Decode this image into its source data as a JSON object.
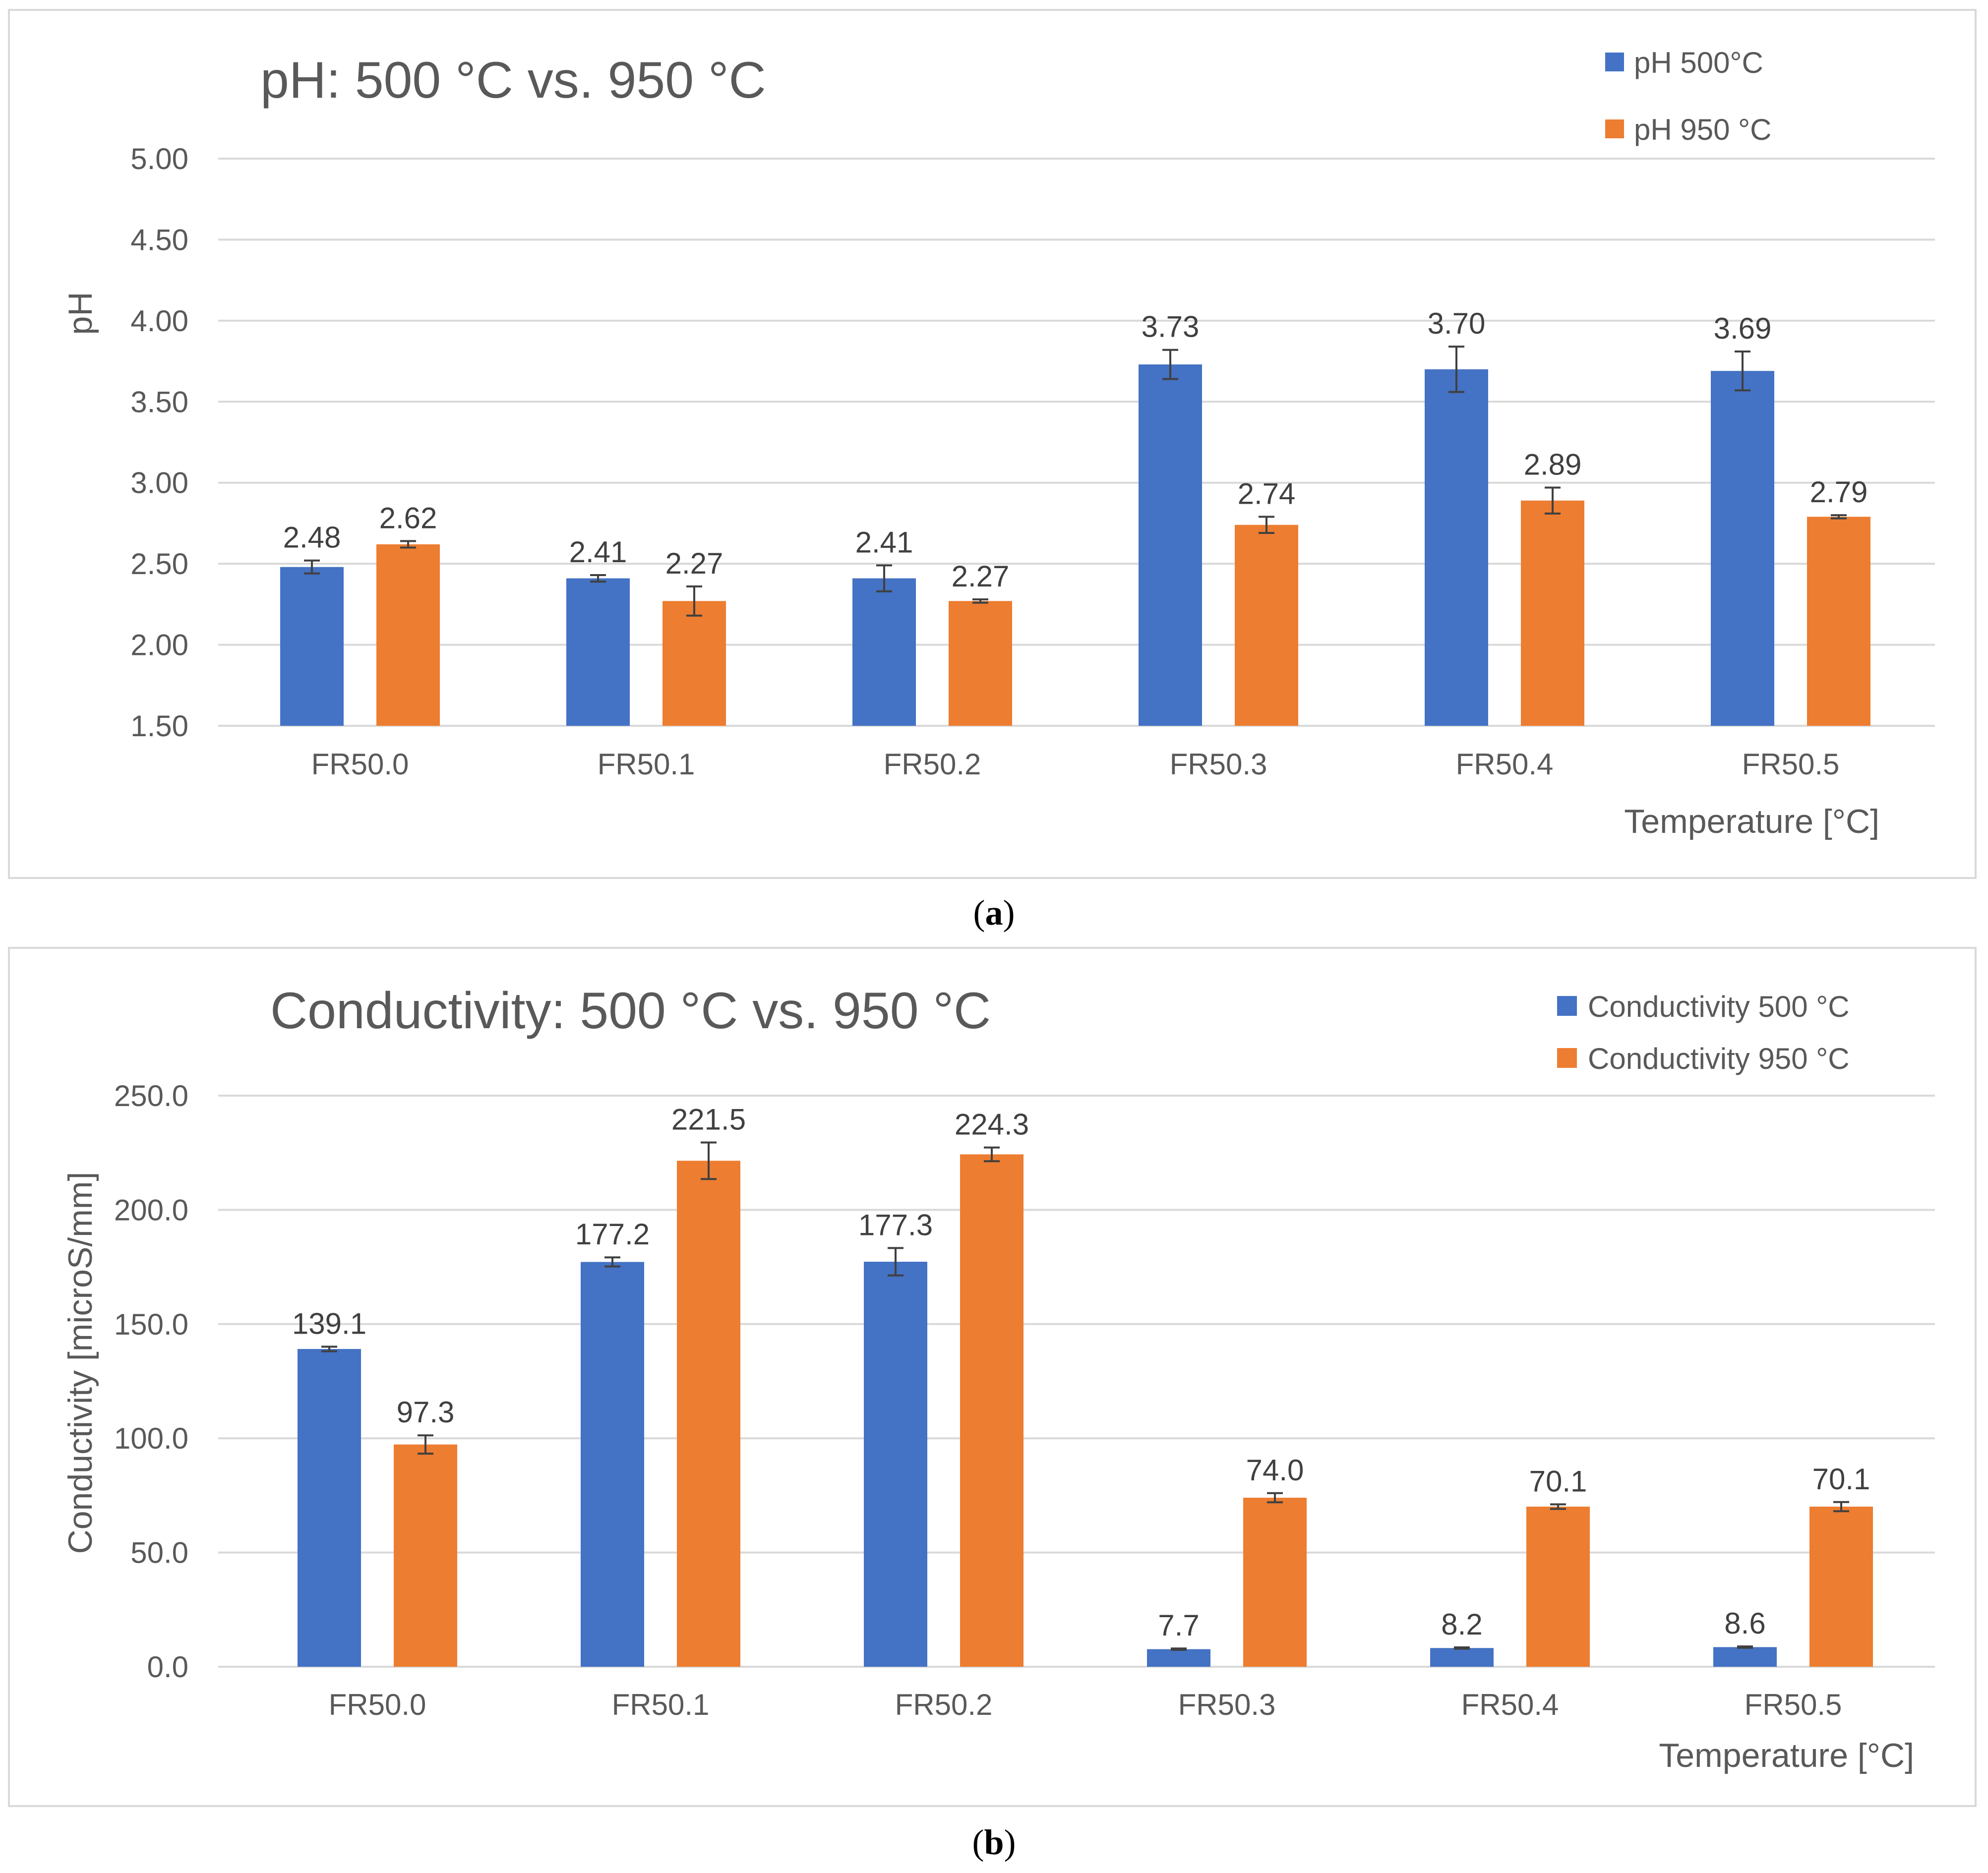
{
  "captions": {
    "a_letter": "a",
    "b_letter": "b"
  },
  "colors": {
    "series1": "#4472c4",
    "series2": "#ed7d31",
    "grid": "#d9d9d9",
    "text": "#595959",
    "error_bar": "#404040"
  },
  "chart_data": [
    {
      "type": "bar",
      "title": "pH: 500 °C vs. 950 °C",
      "xlabel": "Temperature [°C]",
      "ylabel": "pH",
      "ylim": [
        1.5,
        5.0
      ],
      "ytick_step": 0.5,
      "ytick_labels": [
        "1.50",
        "2.00",
        "2.50",
        "3.00",
        "3.50",
        "4.00",
        "4.50",
        "5.00"
      ],
      "categories": [
        "FR50.0",
        "FR50.1",
        "FR50.2",
        "FR50.3",
        "FR50.4",
        "FR50.5"
      ],
      "legend_position": "top-right",
      "series": [
        {
          "name": "pH 500°C",
          "values": [
            2.48,
            2.41,
            2.41,
            3.73,
            3.7,
            3.69
          ],
          "labels": [
            "2.48",
            "2.41",
            "2.41",
            "3.73",
            "3.70",
            "3.69"
          ],
          "errors": [
            0.04,
            0.02,
            0.08,
            0.09,
            0.14,
            0.12
          ]
        },
        {
          "name": "pH 950 °C",
          "values": [
            2.62,
            2.27,
            2.27,
            2.74,
            2.89,
            2.79
          ],
          "labels": [
            "2.62",
            "2.27",
            "2.27",
            "2.74",
            "2.89",
            "2.79"
          ],
          "errors": [
            0.02,
            0.09,
            0.01,
            0.05,
            0.08,
            0.01
          ]
        }
      ]
    },
    {
      "type": "bar",
      "title": "Conductivity: 500 °C vs. 950 °C",
      "xlabel": "Temperature [°C]",
      "ylabel": "Conductivity [microS/mm]",
      "ylim": [
        0,
        250
      ],
      "ytick_step": 50,
      "ytick_labels": [
        "0.0",
        "50.0",
        "100.0",
        "150.0",
        "200.0",
        "250.0"
      ],
      "categories": [
        "FR50.0",
        "FR50.1",
        "FR50.2",
        "FR50.3",
        "FR50.4",
        "FR50.5"
      ],
      "legend_position": "top-right",
      "series": [
        {
          "name": "Conductivity 500 °C",
          "values": [
            139.1,
            177.2,
            177.3,
            7.7,
            8.2,
            8.6
          ],
          "labels": [
            "139.1",
            "177.2",
            "177.3",
            "7.7",
            "8.2",
            "8.6"
          ],
          "errors": [
            1.0,
            2.0,
            6.0,
            0.3,
            0.3,
            0.3
          ]
        },
        {
          "name": "Conductivity  950 °C",
          "values": [
            97.3,
            221.5,
            224.3,
            74.0,
            70.1,
            70.1
          ],
          "labels": [
            "97.3",
            "221.5",
            "224.3",
            "74.0",
            "70.1",
            "70.1"
          ],
          "errors": [
            4.0,
            8.0,
            3.0,
            2.0,
            1.0,
            2.0
          ]
        }
      ]
    }
  ]
}
